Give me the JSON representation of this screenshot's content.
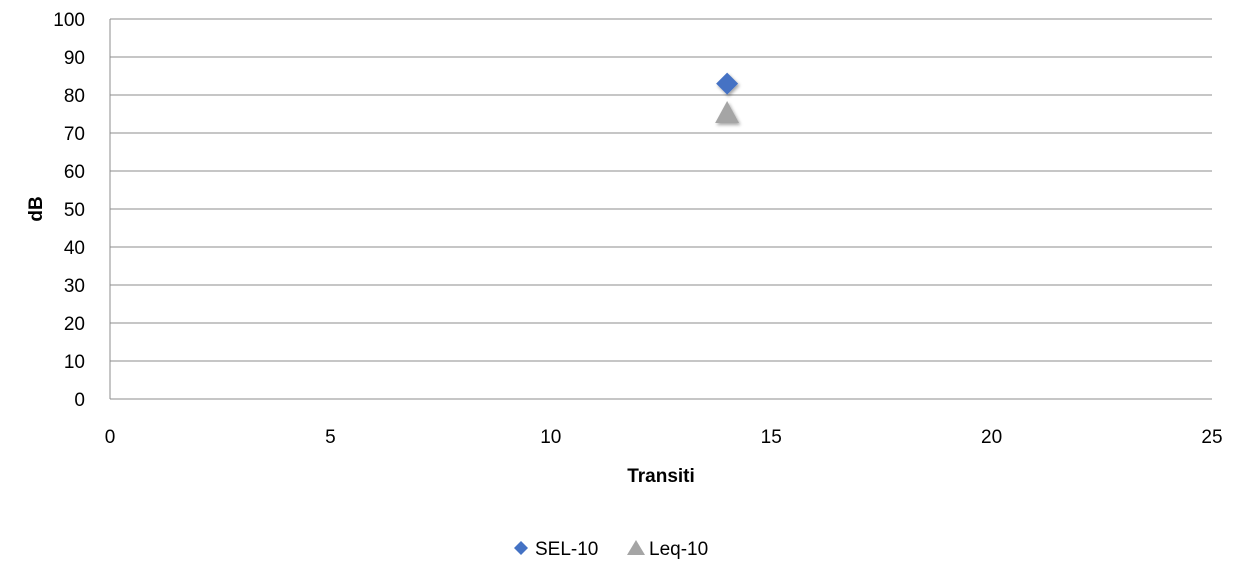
{
  "chart_data": {
    "type": "scatter",
    "title": "",
    "xlabel": "Transiti",
    "ylabel": "dB",
    "xlim": [
      0,
      25
    ],
    "ylim": [
      0,
      100
    ],
    "x_ticks": [
      0,
      5,
      10,
      15,
      20,
      25
    ],
    "y_ticks": [
      0,
      10,
      20,
      30,
      40,
      50,
      60,
      70,
      80,
      90,
      100
    ],
    "grid": {
      "horizontal": true,
      "vertical": false
    },
    "legend_position": "bottom",
    "series": [
      {
        "name": "SEL-10",
        "marker": "diamond",
        "color": "#4472C4",
        "points": [
          {
            "x": 14,
            "y": 83
          }
        ]
      },
      {
        "name": "Leq-10",
        "marker": "triangle",
        "color": "#A5A5A5",
        "points": [
          {
            "x": 14,
            "y": 75
          }
        ]
      }
    ]
  }
}
